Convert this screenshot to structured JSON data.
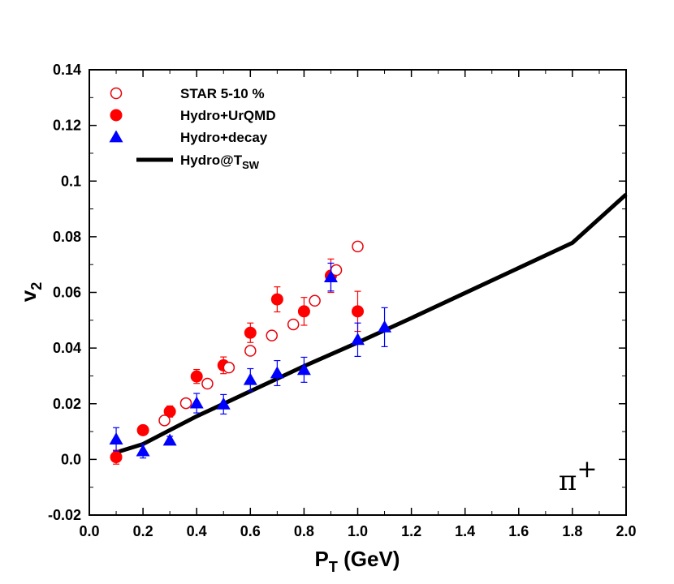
{
  "chart_data": {
    "type": "scatter",
    "title": "",
    "xlabel": "P",
    "xlabel_sub": "T",
    "xlabel_unit": " (GeV)",
    "ylabel": "v",
    "ylabel_sub": "2",
    "xlim": [
      0.0,
      2.0
    ],
    "ylim": [
      -0.02,
      0.14
    ],
    "xticks": [
      0.0,
      0.2,
      0.4,
      0.6,
      0.8,
      1.0,
      1.2,
      1.4,
      1.6,
      1.8,
      2.0
    ],
    "xtick_labels": [
      "0.0",
      "0.2",
      "0.4",
      "0.6",
      "0.8",
      "1.0",
      "1.2",
      "1.4",
      "1.6",
      "1.8",
      "2.0"
    ],
    "yticks": [
      -0.02,
      0.0,
      0.02,
      0.04,
      0.06,
      0.08,
      0.1,
      0.12,
      0.14
    ],
    "ytick_labels": [
      "-0.02",
      "0.0",
      "0.02",
      "0.04",
      "0.06",
      "0.08",
      "0.1",
      "0.12",
      "0.14"
    ],
    "grid": false,
    "legend_position": "top-left",
    "annotation": {
      "text": "π",
      "sup": "+"
    },
    "series": [
      {
        "name": "STAR 5-10 %",
        "marker": "open-circle",
        "color": "#e8000b",
        "x": [
          0.28,
          0.36,
          0.44,
          0.52,
          0.6,
          0.68,
          0.76,
          0.84,
          0.92,
          1.0
        ],
        "y": [
          0.014,
          0.0202,
          0.0272,
          0.033,
          0.039,
          0.0445,
          0.0485,
          0.057,
          0.068,
          0.0765
        ],
        "err": [
          0.001,
          0.001,
          0.001,
          0.001,
          0.001,
          0.001,
          0.001,
          0.001,
          0.0012,
          0.0015
        ]
      },
      {
        "name": "Hydro+UrQMD",
        "marker": "filled-circle",
        "color": "#ff0000",
        "x": [
          0.1,
          0.2,
          0.3,
          0.4,
          0.5,
          0.6,
          0.7,
          0.8,
          0.9,
          1.0
        ],
        "y": [
          0.0008,
          0.0105,
          0.0172,
          0.0298,
          0.0338,
          0.0455,
          0.0575,
          0.0532,
          0.066,
          0.0532
        ],
        "err": [
          0.0025,
          0.0015,
          0.002,
          0.0025,
          0.003,
          0.0035,
          0.0045,
          0.005,
          0.006,
          0.0072
        ]
      },
      {
        "name": "Hydro+decay",
        "marker": "filled-triangle",
        "color": "#0000ff",
        "x": [
          0.1,
          0.2,
          0.3,
          0.4,
          0.5,
          0.6,
          0.7,
          0.8,
          0.9,
          1.0,
          1.1
        ],
        "y": [
          0.0072,
          0.003,
          0.0068,
          0.0202,
          0.0198,
          0.0286,
          0.031,
          0.0322,
          0.0655,
          0.043,
          0.0475
        ],
        "err": [
          0.0042,
          0.0025,
          0.0015,
          0.0035,
          0.0035,
          0.004,
          0.0045,
          0.0045,
          0.005,
          0.006,
          0.007
        ]
      },
      {
        "name": "Hydro@T",
        "name_sub": "SW",
        "marker": "line",
        "color": "#000000",
        "x": [
          0.1,
          0.2,
          0.3,
          0.4,
          0.5,
          0.6,
          0.7,
          0.8,
          1.0,
          1.2,
          1.4,
          1.6,
          1.8,
          2.0
        ],
        "y": [
          0.0025,
          0.0055,
          0.0105,
          0.0155,
          0.02,
          0.0245,
          0.029,
          0.0335,
          0.042,
          0.0508,
          0.0598,
          0.0688,
          0.0778,
          0.0952
        ]
      }
    ]
  }
}
